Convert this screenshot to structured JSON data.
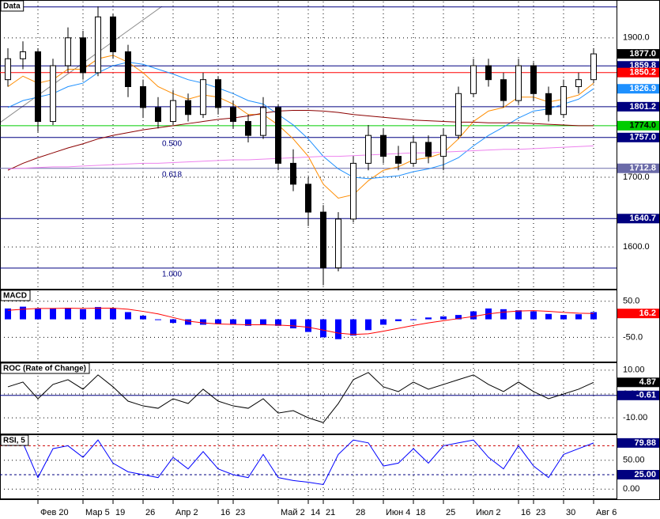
{
  "chart_data": [
    {
      "type": "candlestick",
      "title": "Data",
      "categories": [
        null,
        null,
        "Фев 20",
        null,
        null,
        "Мар 5",
        null,
        "19",
        null,
        "26",
        null,
        "Апр 2",
        null,
        null,
        "16",
        "23",
        null,
        null,
        "Май 2",
        null,
        "14",
        "21",
        null,
        "28",
        null,
        "Июн 4",
        null,
        "18",
        null,
        "25",
        null,
        "Июл 2",
        null,
        null,
        "16",
        "23",
        null,
        "30",
        null,
        "Авг 6"
      ],
      "open": [
        1840,
        1870,
        1880,
        1780,
        1860,
        1900,
        1850,
        1930,
        1880,
        1830,
        1800,
        1780,
        1810,
        1790,
        1840,
        1800,
        1780,
        1760,
        1800,
        1720,
        1690,
        1650,
        1570,
        1640,
        1720,
        1760,
        1730,
        1720,
        1750,
        1730,
        1760,
        1820,
        1860,
        1840,
        1810,
        1860,
        1820,
        1790,
        1830,
        1840
      ],
      "high": [
        1885,
        1895,
        1885,
        1870,
        1915,
        1910,
        1945,
        1935,
        1890,
        1840,
        1815,
        1825,
        1820,
        1850,
        1845,
        1810,
        1790,
        1815,
        1805,
        1740,
        1700,
        1660,
        1650,
        1730,
        1775,
        1770,
        1745,
        1760,
        1760,
        1770,
        1830,
        1870,
        1870,
        1850,
        1870,
        1865,
        1830,
        1840,
        1850,
        1885
      ],
      "low": [
        1830,
        1855,
        1765,
        1775,
        1850,
        1840,
        1845,
        1870,
        1815,
        1785,
        1770,
        1775,
        1780,
        1785,
        1790,
        1770,
        1750,
        1755,
        1710,
        1680,
        1630,
        1545,
        1565,
        1635,
        1710,
        1720,
        1710,
        1715,
        1720,
        1710,
        1755,
        1815,
        1830,
        1800,
        1805,
        1810,
        1780,
        1785,
        1820,
        1835
      ],
      "close": [
        1870,
        1880,
        1780,
        1860,
        1900,
        1850,
        1930,
        1880,
        1830,
        1800,
        1780,
        1810,
        1790,
        1840,
        1800,
        1780,
        1760,
        1800,
        1720,
        1690,
        1650,
        1570,
        1640,
        1720,
        1760,
        1730,
        1720,
        1750,
        1730,
        1760,
        1820,
        1860,
        1840,
        1810,
        1860,
        1820,
        1790,
        1830,
        1840,
        1877
      ],
      "up_color": "#ffffff",
      "down_color": "#000000",
      "series": [
        {
          "color": "#ff8c00",
          "values": [
            1830,
            1845,
            1835,
            1840,
            1855,
            1855,
            1870,
            1875,
            1865,
            1850,
            1830,
            1820,
            1812,
            1818,
            1815,
            1805,
            1790,
            1790,
            1775,
            1755,
            1730,
            1690,
            1670,
            1675,
            1695,
            1710,
            1715,
            1725,
            1728,
            1735,
            1755,
            1780,
            1795,
            1800,
            1815,
            1815,
            1808,
            1812,
            1818,
            1835
          ]
        },
        {
          "color": "#1e90ff",
          "values": [
            1800,
            1810,
            1815,
            1820,
            1830,
            1835,
            1850,
            1860,
            1865,
            1862,
            1855,
            1848,
            1840,
            1835,
            1828,
            1820,
            1810,
            1805,
            1790,
            1775,
            1755,
            1730,
            1712,
            1700,
            1698,
            1700,
            1702,
            1708,
            1712,
            1718,
            1728,
            1745,
            1760,
            1772,
            1785,
            1795,
            1798,
            1805,
            1812,
            1826.9
          ]
        },
        {
          "color": "#8b0000",
          "values": [
            1710,
            1720,
            1728,
            1735,
            1742,
            1748,
            1755,
            1760,
            1764,
            1768,
            1771,
            1774,
            1777,
            1780,
            1783,
            1785,
            1788,
            1792,
            1795,
            1796,
            1796,
            1795,
            1793,
            1790,
            1788,
            1786,
            1784,
            1782,
            1781,
            1780,
            1779,
            1779,
            1778,
            1778,
            1778,
            1777,
            1776,
            1775,
            1774,
            1774
          ]
        },
        {
          "color": "#ee82ee",
          "values": [
            1712,
            1713,
            1714,
            1715,
            1715,
            1716,
            1717,
            1718,
            1719,
            1720,
            1720,
            1721,
            1722,
            1723,
            1724,
            1725,
            1725,
            1726,
            1727,
            1728,
            1729,
            1730,
            1730,
            1731,
            1732,
            1733,
            1734,
            1735,
            1735,
            1736,
            1737,
            1738,
            1739,
            1740,
            1740,
            1741,
            1742,
            1743,
            1744,
            1745
          ]
        }
      ],
      "ylim": [
        1540,
        1952
      ],
      "yticks": [
        {
          "value": 1600,
          "label": "1600.0"
        },
        {
          "value": 1700,
          "label": "1700.0"
        },
        {
          "value": 1900,
          "label": "1900.0"
        }
      ],
      "grid": true,
      "levels": [
        {
          "value": 1944.3,
          "color": "#000080",
          "line": true
        },
        {
          "value": 1859.8,
          "label": "1859.8",
          "color": "#000080",
          "line": true
        },
        {
          "value": 1850.2,
          "label": "1850.2",
          "color": "#ff0000",
          "line": true
        },
        {
          "value": 1801.2,
          "label": "1801.2",
          "color": "#000080",
          "line": true
        },
        {
          "value": 1774.0,
          "label": "1774.0",
          "color": "#00cc00",
          "text_color": "#000000",
          "line": true
        },
        {
          "value": 1757.0,
          "label": "1757.0",
          "color": "#000080",
          "line": true
        },
        {
          "value": 1712.8,
          "label": "1712.8",
          "color": "#6a6aa8",
          "line": true
        },
        {
          "value": 1640.7,
          "label": "1640.7",
          "color": "#000080",
          "line": true
        },
        {
          "value": 1569.7,
          "color": "#000080",
          "line": true
        },
        {
          "value": 1826.9,
          "label": "1826.9",
          "color": "#1e90ff",
          "line": false
        },
        {
          "value": 1877.0,
          "label": "1877.0",
          "color": "#000000",
          "line": false
        }
      ],
      "annotations": [
        {
          "text": "0.500",
          "y": 1757.0
        },
        {
          "text": "0.618",
          "y": 1712.8
        },
        {
          "text": "1.000",
          "y": 1569.7
        }
      ]
    },
    {
      "type": "macd",
      "title": "MACD",
      "color": "#0000ff",
      "values": [
        30,
        35,
        30,
        30,
        32,
        28,
        34,
        30,
        20,
        10,
        0,
        -10,
        -15,
        -15,
        -12,
        -15,
        -18,
        -15,
        -18,
        -25,
        -35,
        -50,
        -55,
        -45,
        -30,
        -15,
        -5,
        0,
        5,
        8,
        12,
        22,
        30,
        28,
        25,
        22,
        15,
        12,
        14,
        20
      ],
      "signal": {
        "color": "#ff0000",
        "values": [
          25,
          28,
          30,
          30,
          31,
          30,
          31,
          31,
          28,
          22,
          15,
          5,
          -5,
          -10,
          -13,
          -14,
          -15,
          -15,
          -16,
          -18,
          -22,
          -30,
          -38,
          -42,
          -40,
          -33,
          -25,
          -17,
          -10,
          -4,
          2,
          8,
          15,
          20,
          23,
          24,
          22,
          19,
          17,
          16.2
        ]
      },
      "ylim": [
        -117,
        78
      ],
      "yticks": [
        {
          "value": 50,
          "label": "50.0"
        },
        {
          "value": -50,
          "label": "-50.0"
        }
      ],
      "levels": [
        {
          "value": 16.2,
          "label": "16.2",
          "color": "#ff0000",
          "line": false
        }
      ]
    },
    {
      "type": "line",
      "title": "ROC (Rate of Change)",
      "color": "#000000",
      "values": [
        3,
        5,
        -2,
        4,
        6,
        2,
        8,
        3,
        -3,
        -5,
        -6,
        -2,
        -4,
        2,
        -3,
        -5,
        -6,
        -2,
        -8,
        -7,
        -10,
        -12,
        -4,
        6,
        9,
        3,
        1,
        5,
        2,
        4,
        6,
        8,
        4,
        1,
        5,
        1,
        -2,
        0,
        2,
        4.87
      ],
      "ylim": [
        -16.6,
        12.6
      ],
      "yticks": [
        {
          "value": 10,
          "label": "10.00"
        },
        {
          "value": 0,
          "label": "0.00"
        },
        {
          "value": -10,
          "label": "-10.00"
        }
      ],
      "levels": [
        {
          "value": 4.87,
          "label": "4.87",
          "color": "#000000",
          "line": false
        },
        {
          "value": -0.61,
          "label": "-0.61",
          "color": "#000080",
          "line": true
        }
      ]
    },
    {
      "type": "line",
      "title": "RSI, 5",
      "color": "#0000ff",
      "values": [
        75,
        80,
        20,
        70,
        75,
        55,
        85,
        45,
        30,
        25,
        20,
        55,
        35,
        65,
        35,
        25,
        20,
        60,
        20,
        15,
        12,
        8,
        60,
        85,
        80,
        40,
        45,
        70,
        45,
        75,
        80,
        85,
        55,
        35,
        75,
        40,
        20,
        60,
        70,
        79.88
      ],
      "ylim": [
        -16,
        92
      ],
      "yticks": [
        {
          "value": 50,
          "label": "50.00"
        },
        {
          "value": 0,
          "label": "0.00"
        }
      ],
      "levels": [
        {
          "value": 75,
          "color": "#cc0000",
          "line": true,
          "dash": true
        },
        {
          "value": 25,
          "label": "25.00",
          "color": "#000080",
          "line": true,
          "dash": true
        },
        {
          "value": 79.88,
          "label": "79.88",
          "color": "#000080",
          "line": false
        }
      ]
    }
  ]
}
